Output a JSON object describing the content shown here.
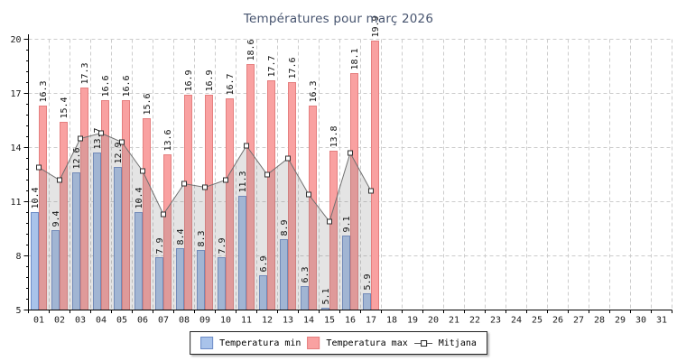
{
  "title": "Températures pour març 2026",
  "chart_data": {
    "type": "bar",
    "title": "Températures pour març 2026",
    "xlabel": "",
    "ylabel": "",
    "ylim": [
      5,
      20
    ],
    "yticks": [
      5,
      8,
      11,
      14,
      17,
      20
    ],
    "ytick_minor_step": 0.6,
    "grid": true,
    "grid_color": "#cccccc",
    "legend_position": "bottom",
    "categories": [
      "01",
      "02",
      "03",
      "04",
      "05",
      "06",
      "07",
      "08",
      "09",
      "10",
      "11",
      "12",
      "13",
      "14",
      "15",
      "16",
      "17",
      "18",
      "19",
      "20",
      "21",
      "22",
      "23",
      "24",
      "25",
      "26",
      "27",
      "28",
      "29",
      "30",
      "31"
    ],
    "series": [
      {
        "name": "Temperatura min",
        "type": "bar",
        "color": "#a9c3ea",
        "border": "#6d8cc7",
        "values": [
          10.4,
          9.4,
          12.6,
          13.7,
          12.9,
          10.4,
          7.9,
          8.4,
          8.3,
          7.9,
          11.3,
          6.9,
          8.9,
          6.3,
          5.1,
          9.1,
          5.9
        ]
      },
      {
        "name": "Temperatura max",
        "type": "bar",
        "color": "#f9a1a1",
        "border": "#e57f7f",
        "values": [
          16.3,
          15.4,
          17.3,
          16.6,
          16.6,
          15.6,
          13.6,
          16.9,
          16.9,
          16.7,
          18.6,
          17.7,
          17.6,
          16.3,
          13.8,
          18.1,
          19.9
        ]
      },
      {
        "name": "Mitjana",
        "type": "line",
        "color": "#707070",
        "marker": "square",
        "area_fill": "rgba(130,130,130,0.22)",
        "values": [
          12.9,
          12.2,
          14.5,
          14.8,
          14.3,
          12.7,
          10.3,
          12.0,
          11.8,
          12.2,
          14.1,
          12.5,
          13.4,
          11.4,
          9.9,
          13.7,
          11.6
        ]
      }
    ],
    "bar_value_labels": true,
    "label_color": "#111111",
    "axis_color": "#000000",
    "title_color": "#47546f"
  }
}
